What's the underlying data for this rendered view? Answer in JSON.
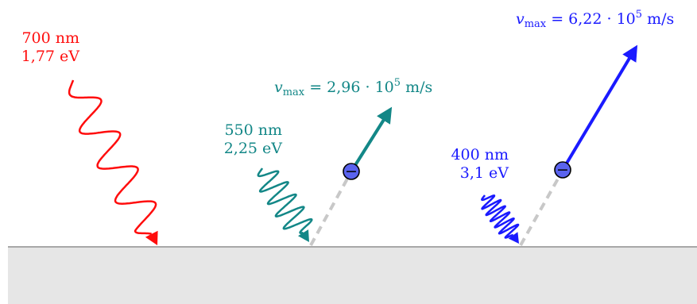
{
  "colors": {
    "red": "#ff0d0d",
    "teal": "#138787",
    "blue": "#1a1aff",
    "electron_fill": "#5a63ee",
    "surface": "#e6e6e6",
    "surface_edge": "#a8a8a8",
    "dashed": "#c8c8c8"
  },
  "photons": [
    {
      "wavelength": "700 nm",
      "energy": "1,77 eV",
      "color": "red"
    },
    {
      "wavelength": "550 nm",
      "energy": "2,25 eV",
      "color": "teal"
    },
    {
      "wavelength": "400 nm",
      "energy": "3,1 eV",
      "color": "blue"
    }
  ],
  "electrons": [
    {
      "v_symbol": "v",
      "v_sub": "max",
      "v_eq": " = 2,96 · 10",
      "v_exp": "5",
      "v_unit": " m/s",
      "sign": "−",
      "color": "teal"
    },
    {
      "v_symbol": "v",
      "v_sub": "max",
      "v_eq": " = 6,22 · 10",
      "v_exp": "5",
      "v_unit": " m/s",
      "sign": "−",
      "color": "blue"
    }
  ]
}
